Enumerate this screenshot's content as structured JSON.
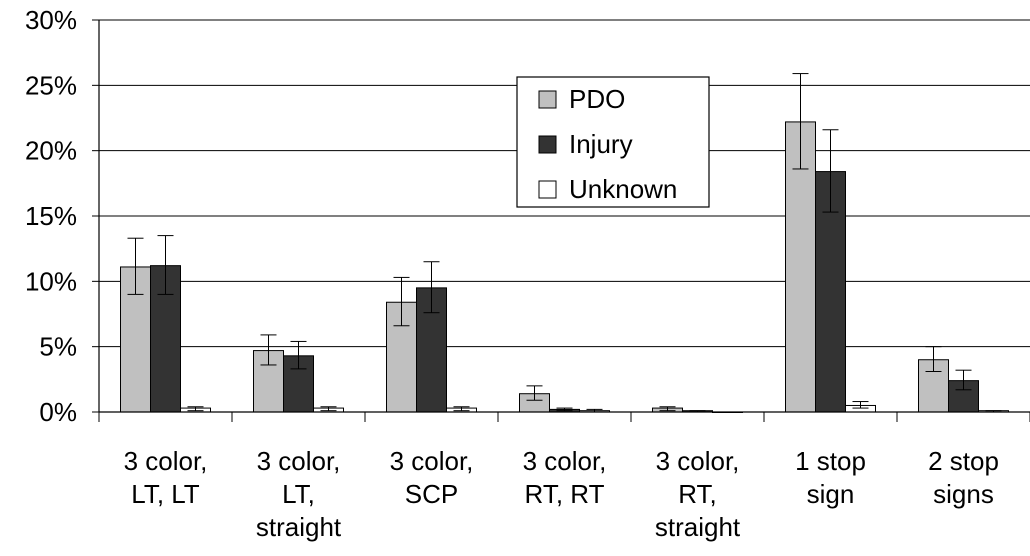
{
  "chart_data": {
    "type": "bar",
    "title": "",
    "xlabel": "",
    "ylabel": "",
    "ylim": [
      0,
      30
    ],
    "y_ticks": [
      "0%",
      "5%",
      "10%",
      "15%",
      "20%",
      "25%",
      "30%"
    ],
    "grid": true,
    "legend_position": "top-center",
    "categories": [
      [
        "3 color,",
        "LT, LT"
      ],
      [
        "3 color,",
        "LT,",
        "straight"
      ],
      [
        "3 color,",
        "SCP"
      ],
      [
        "3 color,",
        "RT, RT"
      ],
      [
        "3 color,",
        "RT,",
        "straight"
      ],
      [
        "1 stop",
        "sign"
      ],
      [
        "2 stop",
        "signs"
      ]
    ],
    "series": [
      {
        "name": "PDO",
        "color": "#c0c0c0",
        "values": [
          11.1,
          4.7,
          8.4,
          1.4,
          0.3,
          22.2,
          4.0
        ],
        "error_low": [
          9.0,
          3.6,
          6.6,
          0.9,
          0.1,
          18.6,
          3.1
        ],
        "error_high": [
          13.3,
          5.9,
          10.3,
          2.0,
          0.4,
          25.9,
          5.0
        ]
      },
      {
        "name": "Injury",
        "color": "#333333",
        "values": [
          11.2,
          4.3,
          9.5,
          0.2,
          0.1,
          18.4,
          2.4
        ],
        "error_low": [
          9.0,
          3.3,
          7.6,
          0.1,
          0.0,
          15.3,
          1.7
        ],
        "error_high": [
          13.5,
          5.4,
          11.5,
          0.3,
          0.1,
          21.6,
          3.2
        ]
      },
      {
        "name": "Unknown",
        "color": "#ffffff",
        "values": [
          0.3,
          0.3,
          0.3,
          0.1,
          0.0,
          0.5,
          0.1
        ],
        "error_low": [
          0.1,
          0.1,
          0.1,
          0.0,
          0.0,
          0.3,
          0.0
        ],
        "error_high": [
          0.4,
          0.4,
          0.4,
          0.2,
          0.0,
          0.8,
          0.1
        ]
      }
    ]
  }
}
